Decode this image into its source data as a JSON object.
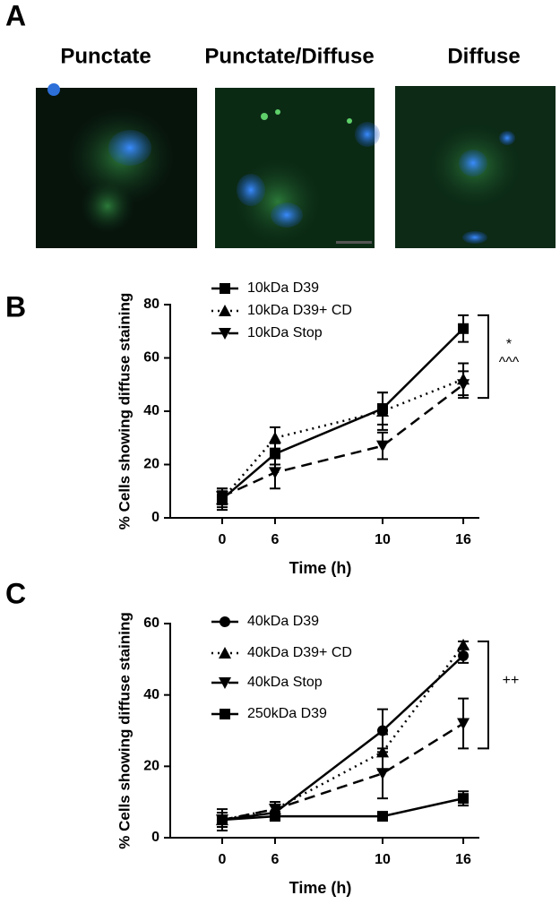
{
  "panel_a": {
    "label": "A",
    "image_titles": [
      "Punctate",
      "Punctate/Diffuse",
      "Diffuse"
    ]
  },
  "chart_data": [
    {
      "type": "line",
      "panel_label": "B",
      "ylabel": "% Cells showing diffuse staining",
      "xlabel": "Time (h)",
      "categories": [
        "0",
        "6",
        "10",
        "16"
      ],
      "ylim": [
        0,
        80
      ],
      "yticks": [
        0,
        20,
        40,
        60,
        80
      ],
      "series": [
        {
          "name": "10kDa D39",
          "color": "#000000",
          "marker": "square",
          "line_style": "solid",
          "values": [
            7,
            24,
            41,
            71
          ],
          "errors": [
            3,
            4,
            6,
            5
          ]
        },
        {
          "name": "10kDa D39+ CD",
          "color": "#000000",
          "marker": "triangle",
          "line_style": "dotted",
          "values": [
            7,
            30,
            40,
            52
          ],
          "errors": [
            4,
            4,
            7,
            6
          ]
        },
        {
          "name": "10kDa Stop",
          "color": "#000000",
          "marker": "triangle-down",
          "line_style": "dashed",
          "values": [
            8,
            17,
            27,
            50
          ],
          "errors": [
            3,
            6,
            5,
            5
          ]
        }
      ],
      "annotations": [
        "*",
        "^^^"
      ]
    },
    {
      "type": "line",
      "panel_label": "C",
      "ylabel": "% Cells showing diffuse staining",
      "xlabel": "Time (h)",
      "categories": [
        "0",
        "6",
        "10",
        "16"
      ],
      "ylim": [
        0,
        60
      ],
      "yticks": [
        0,
        20,
        40,
        60
      ],
      "series": [
        {
          "name": "40kDa D39",
          "color": "#000000",
          "marker": "circle",
          "line_style": "solid",
          "values": [
            5,
            7,
            30,
            51
          ],
          "errors": [
            2,
            2,
            6,
            2
          ]
        },
        {
          "name": "40kDa D39+ CD",
          "color": "#000000",
          "marker": "triangle",
          "line_style": "dotted",
          "values": [
            5,
            8,
            24,
            54
          ],
          "errors": [
            1,
            2,
            5,
            1
          ]
        },
        {
          "name": "40kDa Stop",
          "color": "#000000",
          "marker": "triangle-down",
          "line_style": "dashed",
          "values": [
            5,
            8,
            18,
            32
          ],
          "errors": [
            1,
            2,
            7,
            7
          ]
        },
        {
          "name": "250kDa D39",
          "color": "#000000",
          "marker": "square",
          "line_style": "solid",
          "values": [
            5,
            6,
            6,
            11
          ],
          "errors": [
            3,
            1,
            1,
            2
          ]
        }
      ],
      "annotations": [
        "++"
      ]
    }
  ]
}
